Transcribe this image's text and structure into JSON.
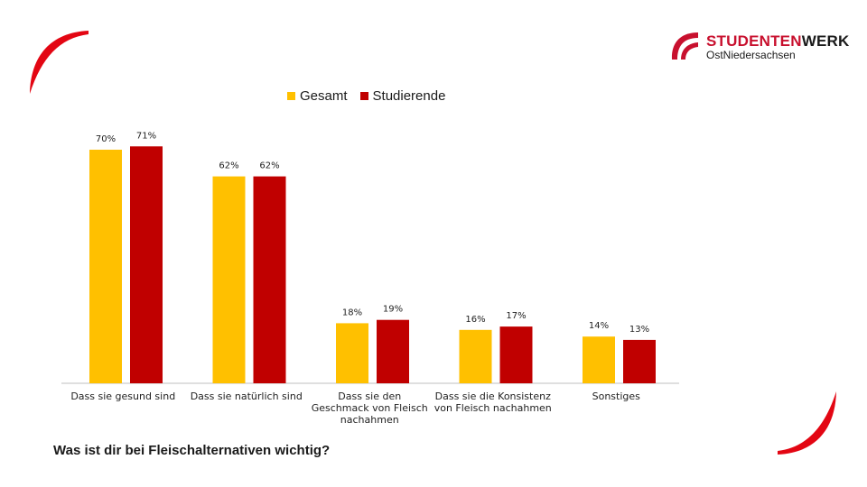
{
  "brand": {
    "name_part1": "STUDENTEN",
    "name_part2": "WERK",
    "subtitle": "OstNiedersachsen",
    "logo_icon": "studentenwerk-logo-icon"
  },
  "question": "Was ist dir bei Fleischalternativen wichtig?",
  "colors": {
    "gesamt": "#FFC000",
    "studierende": "#C00000",
    "brand_red": "#c8102e"
  },
  "chart_data": {
    "type": "bar",
    "categories": [
      [
        "Dass sie gesund sind"
      ],
      [
        "Dass sie natürlich sind"
      ],
      [
        "Dass sie den",
        "Geschmack von Fleisch",
        "nachahmen"
      ],
      [
        "Dass sie die Konsistenz",
        "von Fleisch nachahmen"
      ],
      [
        "Sonstiges"
      ]
    ],
    "series": [
      {
        "name": "Gesamt",
        "values": [
          70,
          62,
          18,
          16,
          14
        ],
        "labels": [
          "70%",
          "62%",
          "18%",
          "16%",
          "14%"
        ]
      },
      {
        "name": "Studierende",
        "values": [
          71,
          62,
          19,
          17,
          13
        ],
        "labels": [
          "71%",
          "62%",
          "19%",
          "17%",
          "13%"
        ]
      }
    ],
    "unit": "%",
    "ylim": [
      0,
      80
    ],
    "legend_position": "top",
    "grid": false
  }
}
